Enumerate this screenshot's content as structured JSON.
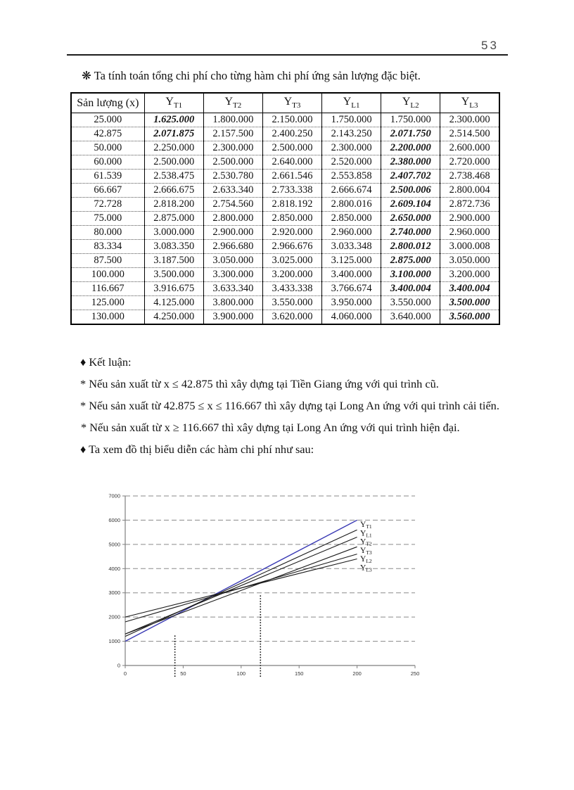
{
  "page_number": "53",
  "intro": "❋ Ta tính toán tổng chi phí cho từng hàm chi phí ứng sản lượng đặc biệt.",
  "table": {
    "headers": [
      {
        "text": "Sản lượng (x)"
      },
      {
        "base": "Y",
        "sub": "T1"
      },
      {
        "base": "Y",
        "sub": "T2"
      },
      {
        "base": "Y",
        "sub": "T3"
      },
      {
        "base": "Y",
        "sub": "L1"
      },
      {
        "base": "Y",
        "sub": "L2"
      },
      {
        "base": "Y",
        "sub": "L3"
      }
    ],
    "rows": [
      {
        "cells": [
          "25.000",
          "1.625.000",
          "1.800.000",
          "2.150.000",
          "1.750.000",
          "1.750.000",
          "2.300.000"
        ],
        "bold_cols": [
          1
        ]
      },
      {
        "cells": [
          "42.875",
          "2.071.875",
          "2.157.500",
          "2.400.250",
          "2.143.250",
          "2.071.750",
          "2.514.500"
        ],
        "bold_cols": [
          1,
          5
        ]
      },
      {
        "cells": [
          "50.000",
          "2.250.000",
          "2.300.000",
          "2.500.000",
          "2.300.000",
          "2.200.000",
          "2.600.000"
        ],
        "bold_cols": [
          5
        ]
      },
      {
        "cells": [
          "60.000",
          "2.500.000",
          "2.500.000",
          "2.640.000",
          "2.520.000",
          "2.380.000",
          "2.720.000"
        ],
        "bold_cols": [
          5
        ]
      },
      {
        "cells": [
          "61.539",
          "2.538.475",
          "2.530.780",
          "2.661.546",
          "2.553.858",
          "2.407.702",
          "2.738.468"
        ],
        "bold_cols": [
          5
        ]
      },
      {
        "cells": [
          "66.667",
          "2.666.675",
          "2.633.340",
          "2.733.338",
          "2.666.674",
          "2.500.006",
          "2.800.004"
        ],
        "bold_cols": [
          5
        ]
      },
      {
        "cells": [
          "72.728",
          "2.818.200",
          "2.754.560",
          "2.818.192",
          "2.800.016",
          "2.609.104",
          "2.872.736"
        ],
        "bold_cols": [
          5
        ]
      },
      {
        "cells": [
          "75.000",
          "2.875.000",
          "2.800.000",
          "2.850.000",
          "2.850.000",
          "2.650.000",
          "2.900.000"
        ],
        "bold_cols": [
          5
        ]
      },
      {
        "cells": [
          "80.000",
          "3.000.000",
          "2.900.000",
          "2.920.000",
          "2.960.000",
          "2.740.000",
          "2.960.000"
        ],
        "bold_cols": [
          5
        ]
      },
      {
        "cells": [
          "83.334",
          "3.083.350",
          "2.966.680",
          "2.966.676",
          "3.033.348",
          "2.800.012",
          "3.000.008"
        ],
        "bold_cols": [
          5
        ]
      },
      {
        "cells": [
          "87.500",
          "3.187.500",
          "3.050.000",
          "3.025.000",
          "3.125.000",
          "2.875.000",
          "3.050.000"
        ],
        "bold_cols": [
          5
        ]
      },
      {
        "cells": [
          "100.000",
          "3.500.000",
          "3.300.000",
          "3.200.000",
          "3.400.000",
          "3.100.000",
          "3.200.000"
        ],
        "bold_cols": [
          5
        ]
      },
      {
        "cells": [
          "116.667",
          "3.916.675",
          "3.633.340",
          "3.433.338",
          "3.766.674",
          "3.400.004",
          "3.400.004"
        ],
        "bold_cols": [
          5,
          6
        ]
      },
      {
        "cells": [
          "125.000",
          "4.125.000",
          "3.800.000",
          "3.550.000",
          "3.950.000",
          "3.550.000",
          "3.500.000"
        ],
        "bold_cols": [
          6
        ]
      },
      {
        "cells": [
          "130.000",
          "4.250.000",
          "3.900.000",
          "3.620.000",
          "4.060.000",
          "3.640.000",
          "3.560.000"
        ],
        "bold_cols": [
          6
        ]
      }
    ]
  },
  "conclusions": {
    "title": "♦ Kết luận:",
    "items": [
      "* Nếu sản xuất từ x ≤ 42.875 thì xây dựng tại Tiền Giang ứng với qui trình cũ.",
      "* Nếu sản xuất từ 42.875 ≤ x ≤ 116.667 thì xây dựng tại Long An ứng với qui trình cải tiến.",
      "* Nếu sản xuất từ  x ≥ 116.667   thì xây dựng tại Long An ứng với qui trình hiện đại."
    ],
    "chart_intro": "♦ Ta xem đồ thị biểu diễn các hàm chi phí như sau:"
  },
  "chart_data": {
    "type": "line",
    "title": "",
    "xlabel": "",
    "ylabel": "",
    "xlim": [
      0,
      250
    ],
    "ylim": [
      0,
      7000
    ],
    "x_ticks": [
      0,
      50,
      100,
      150,
      200,
      250
    ],
    "y_ticks": [
      0,
      1000,
      2000,
      3000,
      4000,
      5000,
      6000,
      7000
    ],
    "grid": "dashed-horizontal",
    "legend_position": "right-of-line-ends",
    "series": [
      {
        "name": "YT1",
        "label_base": "Y",
        "label_sub": "T1",
        "color": "#3a3ab4",
        "points": [
          [
            0,
            1000
          ],
          [
            200,
            6000
          ]
        ]
      },
      {
        "name": "YL1",
        "label_base": "Y",
        "label_sub": "L1",
        "color": "#1a1a1a",
        "points": [
          [
            0,
            1200
          ],
          [
            200,
            5600
          ]
        ]
      },
      {
        "name": "YT2",
        "label_base": "Y",
        "label_sub": "T2",
        "color": "#1a1a1a",
        "points": [
          [
            0,
            1300
          ],
          [
            200,
            5300
          ]
        ]
      },
      {
        "name": "YT3",
        "label_base": "Y",
        "label_sub": "T3",
        "color": "#1a1a1a",
        "points": [
          [
            0,
            1800
          ],
          [
            200,
            4600
          ]
        ]
      },
      {
        "name": "YL2",
        "label_base": "Y",
        "label_sub": "L2",
        "color": "#1a1a1a",
        "points": [
          [
            0,
            1300
          ],
          [
            200,
            4900
          ]
        ]
      },
      {
        "name": "YL3",
        "label_base": "Y",
        "label_sub": "L3",
        "color": "#1a1a1a",
        "points": [
          [
            0,
            2000
          ],
          [
            200,
            4400
          ]
        ]
      }
    ],
    "marker_lines": [
      {
        "x": 42.875,
        "y_top": 1300
      },
      {
        "x": 116.667,
        "y_top": 2950
      }
    ],
    "colors": {
      "accent_line": "#3a3ab4",
      "grid": "#8a8a8a",
      "axis": "#7e7e7e",
      "text": "#333333"
    }
  }
}
